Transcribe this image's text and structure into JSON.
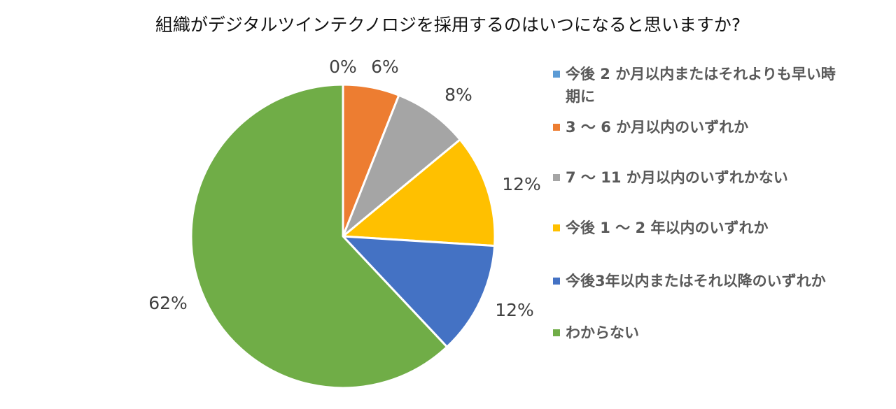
{
  "chart_data": {
    "type": "pie",
    "title": "組織がデジタルツインテクノロジを採用するのはいつになると思いますか?",
    "legend_position": "right",
    "slices": [
      {
        "label": "今後 2 か月以内またはそれよりも早い時期に",
        "value": 0,
        "value_label": "0%",
        "color": "#5B9BD5"
      },
      {
        "label": "3 ～ 6 か月以内のいずれか",
        "value": 6,
        "value_label": "6%",
        "color": "#ED7D31"
      },
      {
        "label": "7 ～ 11 か月以内のいずれかない",
        "value": 8,
        "value_label": "8%",
        "color": "#A5A5A5"
      },
      {
        "label": "今後 1 ～ 2 年以内のいずれか",
        "value": 12,
        "value_label": "12%",
        "color": "#FFC000"
      },
      {
        "label": "今後3年以内またはそれ以降のいずれか",
        "value": 12,
        "value_label": "12%",
        "color": "#4472C4"
      },
      {
        "label": "わからない",
        "value": 62,
        "value_label": "62%",
        "color": "#70AD47"
      }
    ]
  }
}
